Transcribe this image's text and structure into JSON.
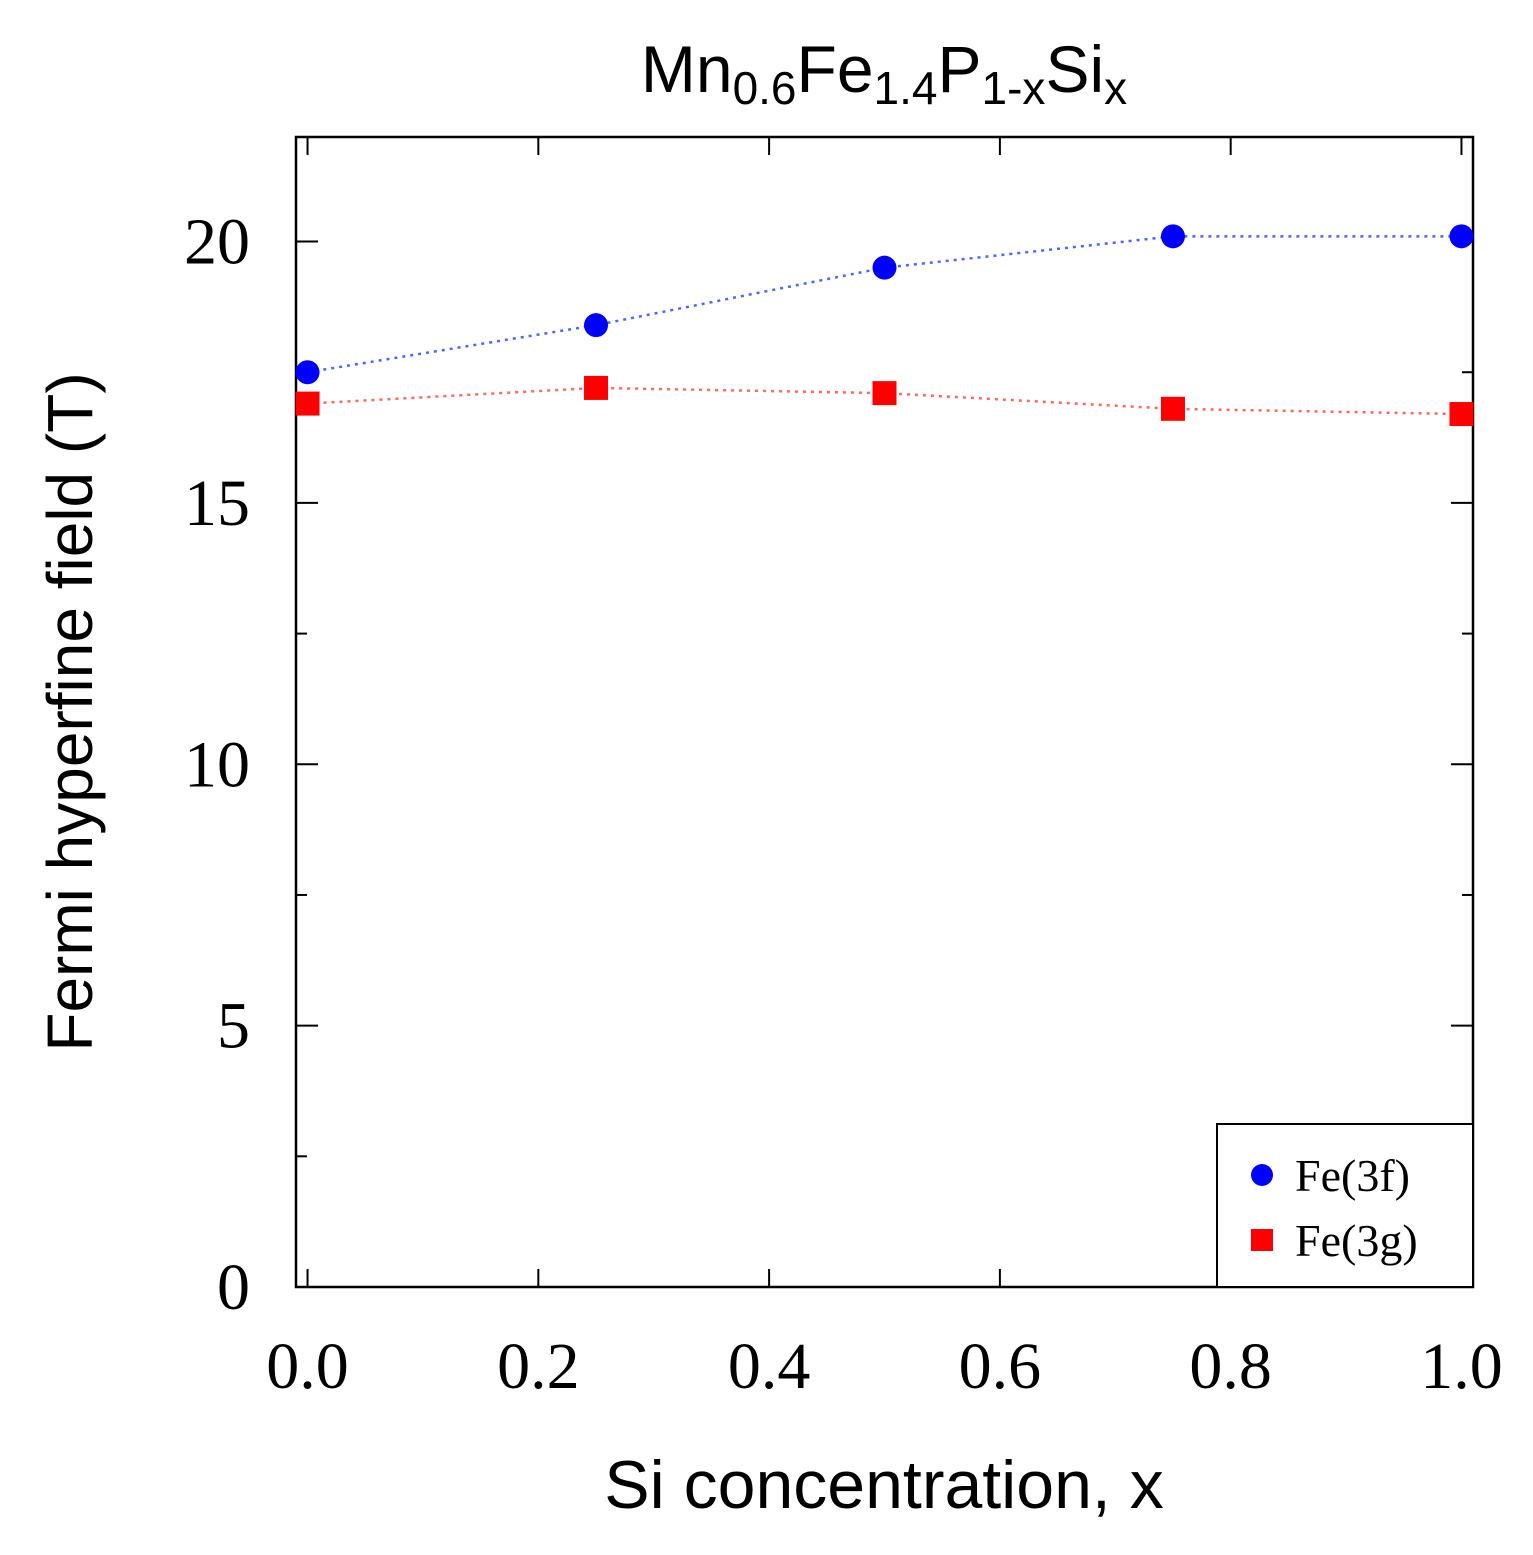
{
  "chart_data": {
    "type": "scatter",
    "title": {
      "parts": [
        {
          "text": "Mn",
          "sub": false
        },
        {
          "text": "0.6",
          "sub": true
        },
        {
          "text": "Fe",
          "sub": false
        },
        {
          "text": "1.4",
          "sub": true
        },
        {
          "text": "P",
          "sub": false
        },
        {
          "text": "1-x",
          "sub": true
        },
        {
          "text": "Si",
          "sub": false
        },
        {
          "text": "x",
          "sub": true
        }
      ]
    },
    "xlabel": "Si concentration, x",
    "ylabel": "Fermi hyperfine field (T)",
    "xlim": [
      -0.01,
      1.01
    ],
    "ylim": [
      0,
      22
    ],
    "xticks": [
      0.0,
      0.2,
      0.4,
      0.6,
      0.8,
      1.0
    ],
    "xtick_labels": [
      "0.0",
      "0.2",
      "0.4",
      "0.6",
      "0.8",
      "1.0"
    ],
    "yticks": [
      0,
      5,
      10,
      15,
      20
    ],
    "ytick_labels": [
      "0",
      "5",
      "10",
      "15",
      "20"
    ],
    "y_minor_ticks": [
      2.5,
      7.5,
      12.5,
      17.5
    ],
    "grid": false,
    "legend_position": "bottom-right",
    "x": [
      0.0,
      0.25,
      0.5,
      0.75,
      1.0
    ],
    "series": [
      {
        "name": "Fe(3f)",
        "marker": "circle",
        "color": "#0000ff",
        "line_color": "#4d66ff",
        "values": [
          17.5,
          18.4,
          19.5,
          20.1,
          20.1
        ]
      },
      {
        "name": "Fe(3g)",
        "marker": "square",
        "color": "#ff0000",
        "line_color": "#ff6666",
        "values": [
          16.9,
          17.2,
          17.1,
          16.8,
          16.7
        ]
      }
    ]
  }
}
